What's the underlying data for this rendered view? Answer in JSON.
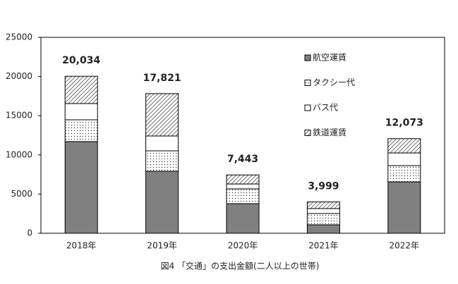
{
  "chart_data": {
    "type": "stacked-bar",
    "caption": "図4 「交通」の支出金額(二人以上の世帯)",
    "categories": [
      "2018年",
      "2019年",
      "2020年",
      "2021年",
      "2022年"
    ],
    "series": [
      {
        "name": "航空運賃",
        "color": "#808080",
        "pattern": "solid",
        "values": [
          11700,
          7910,
          3780,
          1080,
          6560
        ]
      },
      {
        "name": "タクシー代",
        "color": "#ffffff",
        "pattern": "dots",
        "values": [
          2780,
          2610,
          1890,
          1440,
          2070
        ]
      },
      {
        "name": "バス代",
        "color": "#ffffff",
        "pattern": "solid",
        "values": [
          2070,
          1890,
          620,
          630,
          1620
        ]
      },
      {
        "name": "鉄道運賃",
        "color": "#ffffff",
        "pattern": "hatch",
        "values": [
          3484,
          5411,
          1153,
          849,
          1823
        ]
      }
    ],
    "totals": {
      "values": [
        20034,
        17821,
        7443,
        3999,
        12073
      ],
      "value_labels": [
        "20,034",
        "17,821",
        "7,443",
        "3,999",
        "12,073"
      ]
    },
    "ylim": [
      0,
      25000
    ],
    "yticks": [
      0,
      5000,
      10000,
      15000,
      20000,
      25000
    ],
    "grid": false
  }
}
